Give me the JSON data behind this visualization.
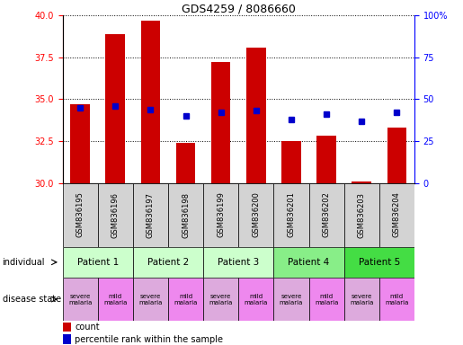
{
  "title": "GDS4259 / 8086660",
  "samples": [
    "GSM836195",
    "GSM836196",
    "GSM836197",
    "GSM836198",
    "GSM836199",
    "GSM836200",
    "GSM836201",
    "GSM836202",
    "GSM836203",
    "GSM836204"
  ],
  "bar_values": [
    34.7,
    38.9,
    39.7,
    32.4,
    37.2,
    38.1,
    32.5,
    32.8,
    30.1,
    33.3
  ],
  "bar_bottom": 30.0,
  "percentile_rank_pct": [
    45,
    46,
    44,
    40,
    42,
    43,
    38,
    41,
    37,
    42
  ],
  "ylim": [
    30,
    40
  ],
  "yticks_left": [
    30,
    32.5,
    35,
    37.5,
    40
  ],
  "yticks_right": [
    0,
    25,
    50,
    75,
    100
  ],
  "bar_color": "#cc0000",
  "dot_color": "#0000cc",
  "patient_groups": [
    {
      "label": "Patient 1",
      "cols": [
        0,
        1
      ],
      "color": "#ccffcc"
    },
    {
      "label": "Patient 2",
      "cols": [
        2,
        3
      ],
      "color": "#ccffcc"
    },
    {
      "label": "Patient 3",
      "cols": [
        4,
        5
      ],
      "color": "#ccffcc"
    },
    {
      "label": "Patient 4",
      "cols": [
        6,
        7
      ],
      "color": "#88ee88"
    },
    {
      "label": "Patient 5",
      "cols": [
        8,
        9
      ],
      "color": "#44dd44"
    }
  ],
  "background_color": "#ffffff"
}
